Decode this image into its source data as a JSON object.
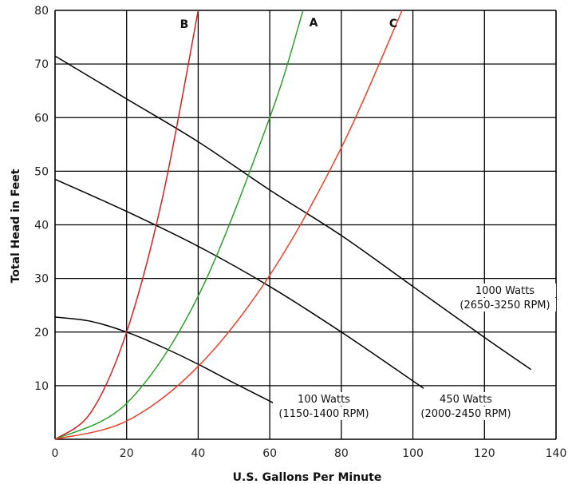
{
  "chart_data": {
    "type": "line",
    "title": "",
    "xlabel": "U.S. Gallons Per Minute",
    "ylabel": "Total Head in Feet",
    "xlim": [
      0,
      140
    ],
    "ylim": [
      0,
      80
    ],
    "x_ticks": [
      "0",
      "20",
      "40",
      "60",
      "80",
      "100",
      "120",
      "140"
    ],
    "y_ticks": [
      "10",
      "20",
      "30",
      "40",
      "50",
      "60",
      "70",
      "80"
    ],
    "grid": true,
    "pump_curves": [
      {
        "label_lines": [
          "1000 Watts",
          "(2650-3250 RPM)"
        ],
        "color": "#000000",
        "points": [
          [
            0,
            71.5
          ],
          [
            20,
            63.5
          ],
          [
            40,
            55.5
          ],
          [
            60,
            46.5
          ],
          [
            80,
            38
          ],
          [
            100,
            28.5
          ],
          [
            120,
            19
          ],
          [
            133,
            13
          ]
        ]
      },
      {
        "label_lines": [
          "450 Watts",
          "(2000-2450 RPM)"
        ],
        "color": "#000000",
        "points": [
          [
            0,
            48.5
          ],
          [
            20,
            42.5
          ],
          [
            40,
            36
          ],
          [
            60,
            28.5
          ],
          [
            80,
            20
          ],
          [
            103,
            9.5
          ]
        ]
      },
      {
        "label_lines": [
          "100 Watts",
          "(1150-1400 RPM)"
        ],
        "color": "#000000",
        "points": [
          [
            0,
            22.8
          ],
          [
            10,
            22
          ],
          [
            20,
            20
          ],
          [
            30,
            17.2
          ],
          [
            40,
            14
          ],
          [
            50,
            10.5
          ],
          [
            61,
            6.8
          ]
        ]
      }
    ],
    "system_curves": [
      {
        "name": "B",
        "color": "#d42020",
        "points": [
          [
            0,
            0
          ],
          [
            10,
            5
          ],
          [
            20,
            20
          ],
          [
            30,
            45
          ],
          [
            40,
            80
          ]
        ]
      },
      {
        "name": "A",
        "color": "#2ca02c",
        "points": [
          [
            0,
            0
          ],
          [
            20,
            6.7
          ],
          [
            40,
            26.7
          ],
          [
            60,
            60
          ],
          [
            69.3,
            80
          ]
        ]
      },
      {
        "name": "C",
        "color": "#e8402a",
        "points": [
          [
            0,
            0
          ],
          [
            20,
            3.4
          ],
          [
            40,
            13.6
          ],
          [
            60,
            30.6
          ],
          [
            80,
            54.4
          ],
          [
            97,
            80
          ]
        ]
      }
    ]
  }
}
